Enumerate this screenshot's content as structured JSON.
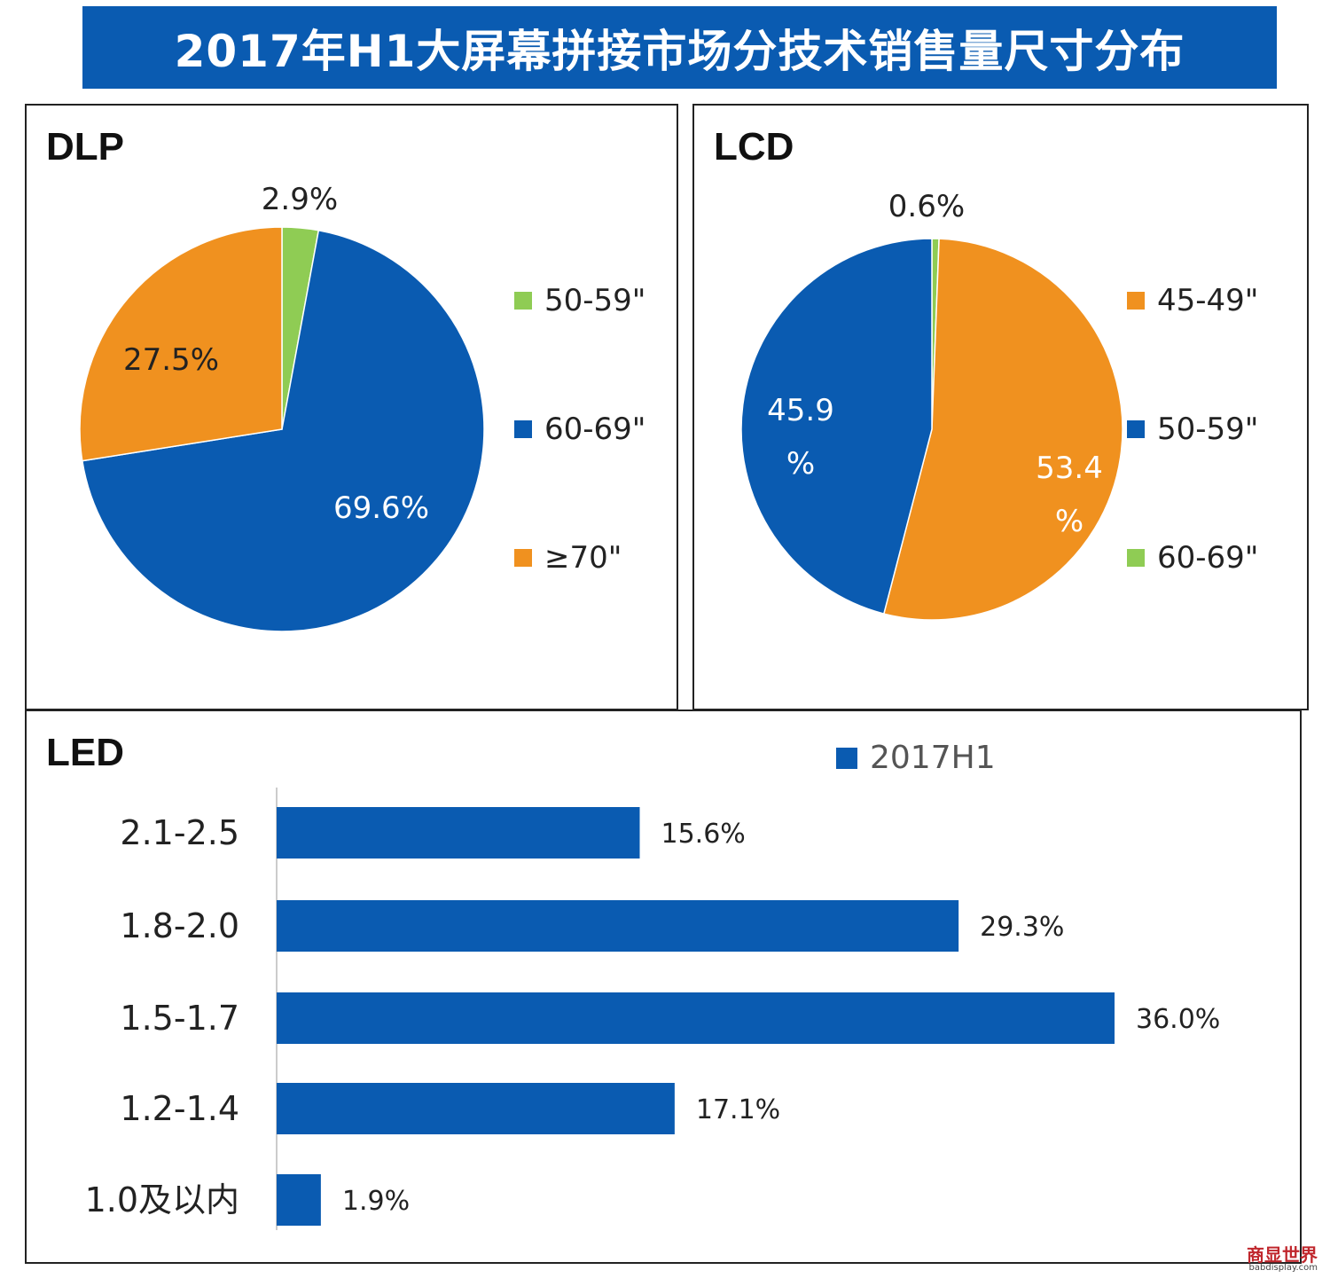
{
  "title": "2017年H1大屏幕拼接市场分技术销售量尺寸分布",
  "watermark": {
    "logo": "商显世界",
    "sub": "babdisplay.com"
  },
  "chart_data": [
    {
      "type": "pie",
      "title": "DLP",
      "slices": [
        {
          "label": "50-59\"",
          "value": 2.9,
          "display": "2.9%",
          "color": "#8fcc54"
        },
        {
          "label": "60-69\"",
          "value": 69.6,
          "display": "69.6%",
          "color": "#0a5bb1"
        },
        {
          "label": "≥70\"",
          "value": 27.5,
          "display": "27.5%",
          "color": "#f0911f"
        }
      ],
      "legend": [
        "50-59\"",
        "60-69\"",
        "≥70\""
      ],
      "legend_position": "right"
    },
    {
      "type": "pie",
      "title": "LCD",
      "slices": [
        {
          "label": "45-49\"",
          "value": 53.4,
          "display": "53.4%",
          "color": "#f0911f"
        },
        {
          "label": "50-59\"",
          "value": 45.9,
          "display": "45.9%",
          "color": "#0a5bb1"
        },
        {
          "label": "60-69\"",
          "value": 0.6,
          "display": "0.6%",
          "color": "#8fcc54"
        }
      ],
      "legend": [
        "45-49\"",
        "50-59\"",
        "60-69\""
      ],
      "legend_position": "right"
    },
    {
      "type": "bar",
      "orientation": "horizontal",
      "title": "LED",
      "categories": [
        "2.1-2.5",
        "1.8-2.0",
        "1.5-1.7",
        "1.2-1.4",
        "1.0及以内"
      ],
      "series": [
        {
          "name": "2017H1",
          "values": [
            15.6,
            29.3,
            36.0,
            17.1,
            1.9
          ],
          "labels": [
            "15.6%",
            "29.3%",
            "36.0%",
            "17.1%",
            "1.9%"
          ],
          "color": "#0a5bb1"
        }
      ],
      "xlim": [
        0,
        36.0
      ],
      "legend_position": "top-right",
      "grid": false
    }
  ]
}
